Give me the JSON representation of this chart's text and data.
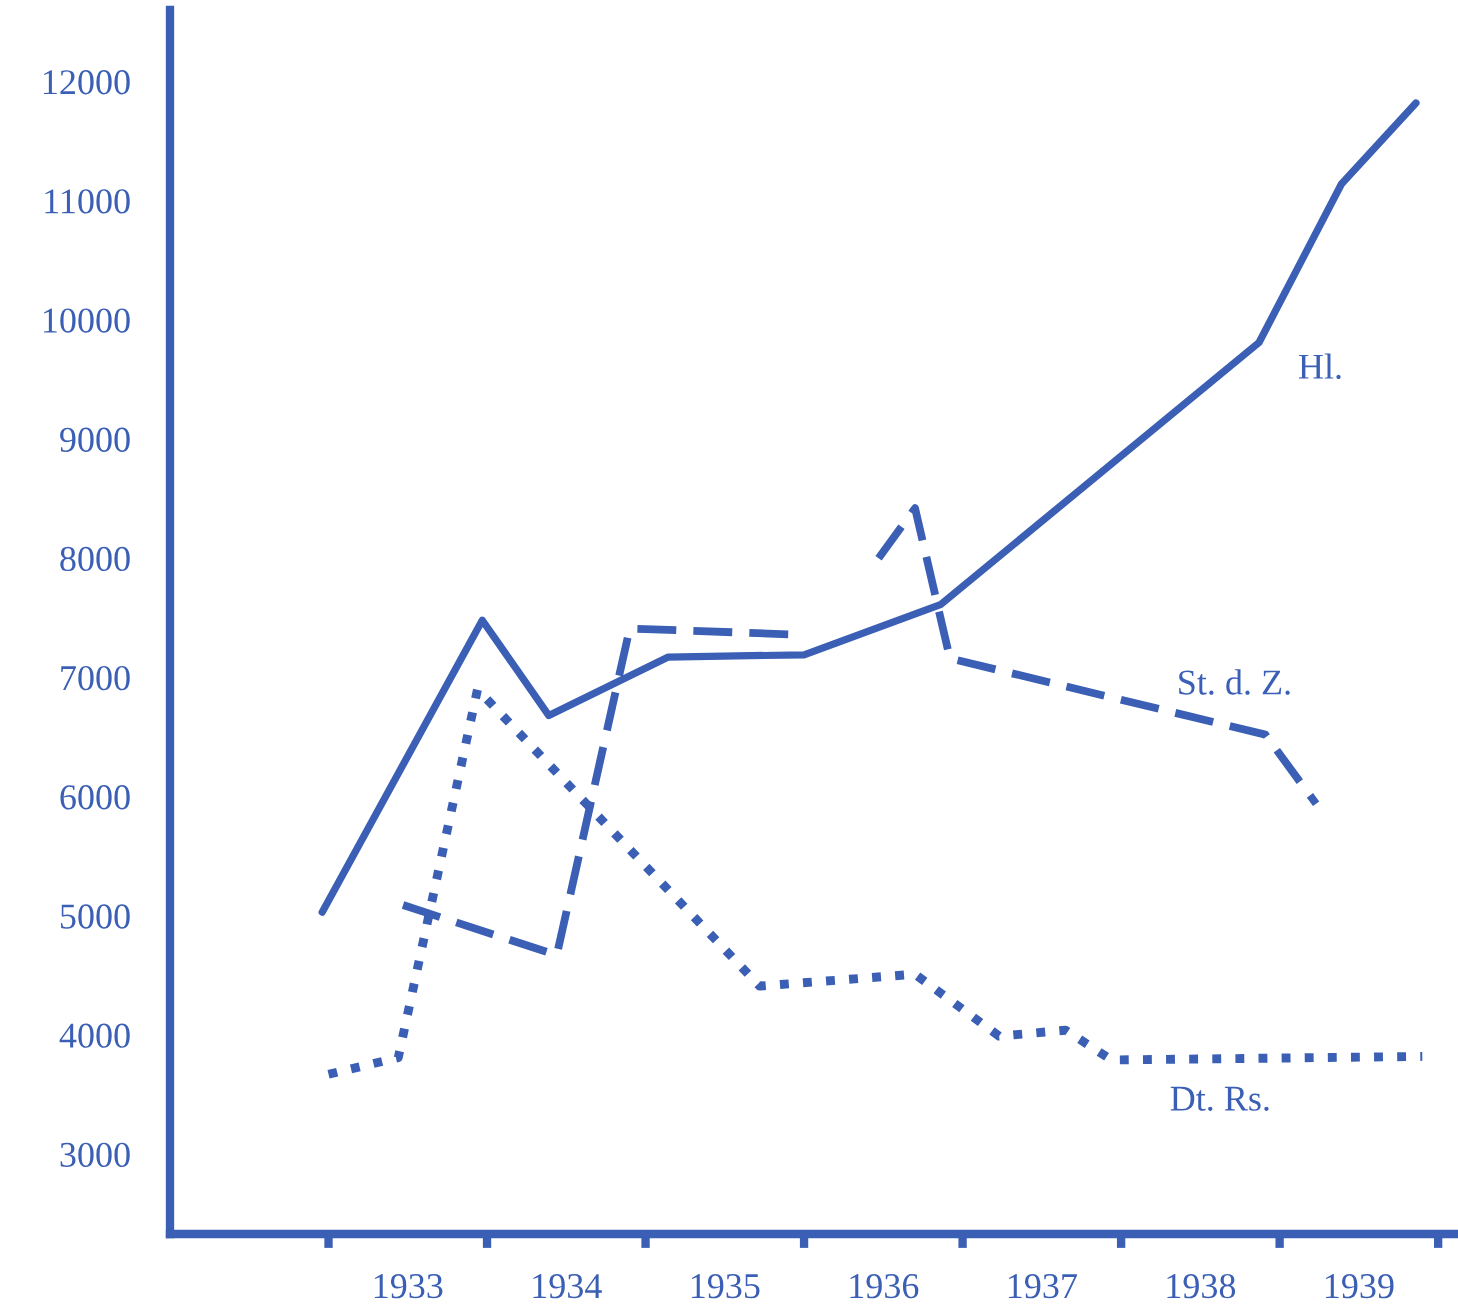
{
  "chart_data": {
    "type": "line",
    "xlim": [
      1932,
      1940.1
    ],
    "xticks": [
      {
        "value": 1933,
        "label": null
      },
      {
        "value": 1933.5,
        "label": "1933"
      },
      {
        "value": 1934,
        "label": null
      },
      {
        "value": 1934.5,
        "label": "1934"
      },
      {
        "value": 1935,
        "label": null
      },
      {
        "value": 1935.5,
        "label": "1935"
      },
      {
        "value": 1936,
        "label": null
      },
      {
        "value": 1936.5,
        "label": "1936"
      },
      {
        "value": 1937,
        "label": null
      },
      {
        "value": 1937.5,
        "label": "1937"
      },
      {
        "value": 1938,
        "label": null
      },
      {
        "value": 1938.5,
        "label": "1938"
      },
      {
        "value": 1939,
        "label": null
      },
      {
        "value": 1939.5,
        "label": "1939"
      },
      {
        "value": 1940,
        "label": null
      }
    ],
    "ylim": [
      2330,
      12600
    ],
    "yticks": [
      3000,
      4000,
      5000,
      6000,
      7000,
      8000,
      9000,
      10000,
      11000,
      12000
    ],
    "grid": false,
    "legend": false,
    "marker": "none",
    "series": [
      {
        "name": "Hl.",
        "color": "#3a5fb4",
        "line_style": "solid",
        "x": [
          1932.96,
          1933.97,
          1934.39,
          1935.14,
          1936.0,
          1936.86,
          1938.87,
          1939.39,
          1939.86
        ],
        "values": [
          5030,
          7480,
          6680,
          7170,
          7190,
          7610,
          9810,
          11140,
          11820
        ]
      },
      {
        "name": "St. d. Z.",
        "color": "#3a5fb4",
        "line_style": "dashed",
        "x": [
          1933.47,
          1934.44,
          1934.9,
          1935.94,
          1936.2,
          1936.47,
          1936.7,
          1936.92,
          1938.91,
          1939.23
        ],
        "values": [
          5090,
          4670,
          7410,
          7360,
          null,
          8000,
          8420,
          7160,
          6520,
          5940
        ]
      },
      {
        "name": "Dt. Rs.",
        "color": "#3a5fb4",
        "line_style": "dotted",
        "x": [
          1933.0,
          1933.44,
          1933.94,
          1935.72,
          1936.7,
          1937.23,
          1937.65,
          1937.94,
          1939.9
        ],
        "values": [
          3670,
          3810,
          6900,
          4410,
          4510,
          3990,
          4040,
          3790,
          3820
        ]
      }
    ]
  }
}
